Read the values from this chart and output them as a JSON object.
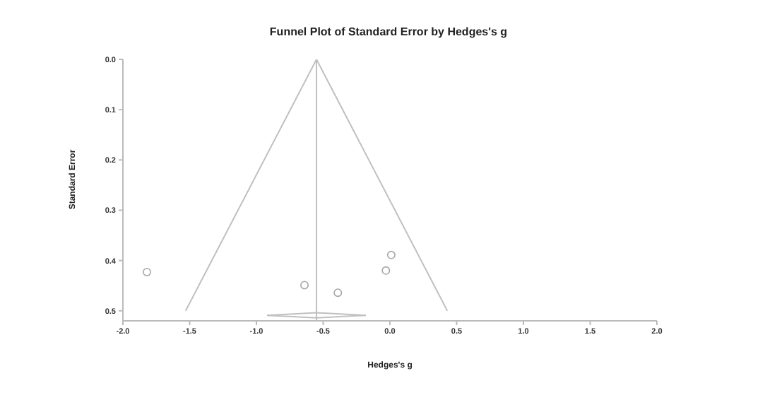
{
  "chart_data": {
    "type": "scatter",
    "title": "Funnel Plot of Standard Error by Hedges's g",
    "xlabel": "Hedges's g",
    "ylabel": "Standard Error",
    "xlim": [
      -2,
      2
    ],
    "xticks": [
      {
        "value": -2,
        "label": "-2.0"
      },
      {
        "value": -1.5,
        "label": "-1.5"
      },
      {
        "value": -1,
        "label": "-1.0"
      },
      {
        "value": -0.5,
        "label": "-0.5"
      },
      {
        "value": 0,
        "label": "0.0"
      },
      {
        "value": 0.5,
        "label": "0.5"
      },
      {
        "value": 1,
        "label": "1.0"
      },
      {
        "value": 1.5,
        "label": "1.5"
      },
      {
        "value": 2,
        "label": "2.0"
      }
    ],
    "ylim": [
      0.52,
      0
    ],
    "yticks": [
      {
        "value": 0,
        "label": "0.0"
      },
      {
        "value": 0.1,
        "label": "0.1"
      },
      {
        "value": 0.2,
        "label": "0.2"
      },
      {
        "value": 0.3,
        "label": "0.3"
      },
      {
        "value": 0.4,
        "label": "0.4"
      },
      {
        "value": 0.5,
        "label": "0.5"
      }
    ],
    "marker": "circle",
    "series": [
      {
        "color": "#a6a6a6",
        "x": [
          -1.82,
          -0.64,
          -0.39,
          -0.03,
          0.01
        ],
        "values": [
          0.423,
          0.449,
          0.464,
          0.42,
          0.389
        ]
      },
      {
        "type": "line",
        "marker": "none",
        "color": "#c0c0c0",
        "x": [
          -1.53,
          -0.55,
          0.43
        ],
        "values": [
          0.5,
          0,
          0.5
        ]
      },
      {
        "type": "line",
        "marker": "none",
        "color": "#c0c0c0",
        "x": [
          -0.92,
          -0.55,
          -0.18
        ],
        "values": [
          0.509,
          0.504,
          0.509
        ]
      },
      {
        "type": "line",
        "marker": "none",
        "color": "#c0c0c0",
        "x": [
          -0.92,
          -0.55,
          -0.18
        ],
        "values": [
          0.509,
          0.514,
          0.509
        ]
      }
    ],
    "ref_lines": [
      {
        "axis": "x",
        "value": -0.55,
        "color": "#c0c0c0"
      }
    ]
  }
}
